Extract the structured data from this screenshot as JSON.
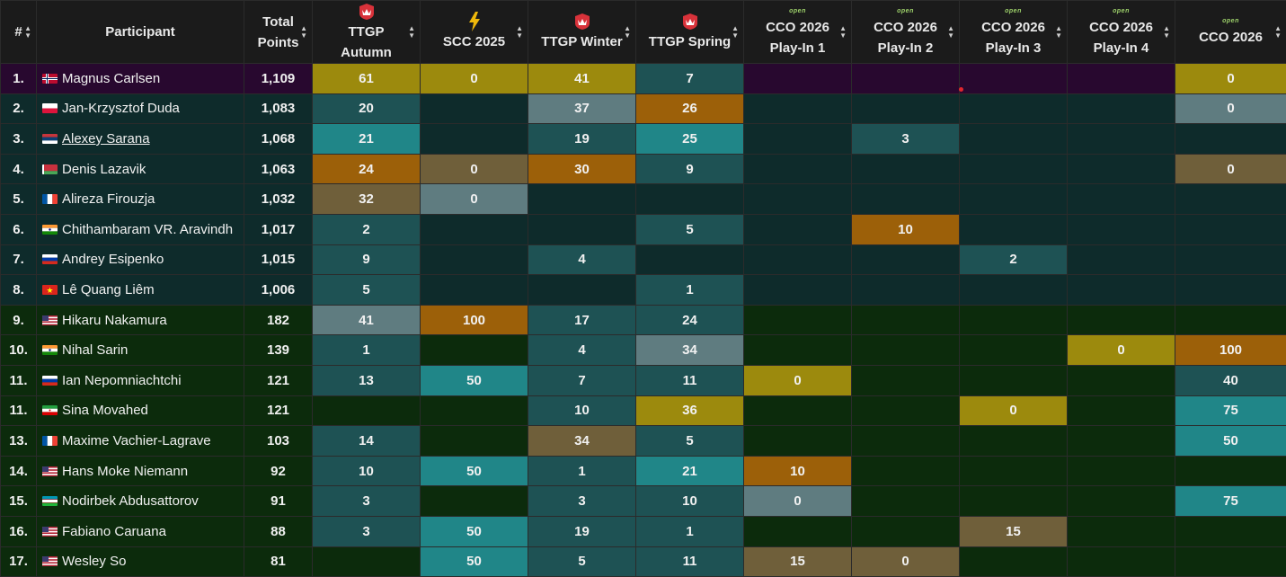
{
  "table": {
    "headers": [
      {
        "label": [
          "#"
        ],
        "icon": ""
      },
      {
        "label": [
          "Participant"
        ],
        "icon": ""
      },
      {
        "label": [
          "Total",
          "Points"
        ],
        "icon": ""
      },
      {
        "label": [
          "TTGP",
          "Autumn"
        ],
        "icon": "ttgp-crown-icon",
        "icon_color": "#d8323a"
      },
      {
        "label": [
          "SCC 2025"
        ],
        "icon": "lightning-icon",
        "icon_color": "#f0b90b"
      },
      {
        "label": [
          "TTGP Winter"
        ],
        "icon": "ttgp-crown-icon",
        "icon_color": "#d8323a"
      },
      {
        "label": [
          "TTGP Spring"
        ],
        "icon": "ttgp-crown-icon",
        "icon_color": "#d8323a"
      },
      {
        "label": [
          "CCO 2026",
          "Play-In 1"
        ],
        "icon": "open-logo-icon",
        "logo_text": "open"
      },
      {
        "label": [
          "CCO 2026",
          "Play-In 2"
        ],
        "icon": "open-logo-icon",
        "logo_text": "open"
      },
      {
        "label": [
          "CCO 2026",
          "Play-In 3"
        ],
        "icon": "open-logo-icon",
        "logo_text": "open"
      },
      {
        "label": [
          "CCO 2026",
          "Play-In 4"
        ],
        "icon": "open-logo-icon",
        "logo_text": "open"
      },
      {
        "label": [
          "CCO 2026"
        ],
        "icon": "open-logo-icon",
        "logo_text": "open"
      }
    ],
    "colors": {
      "purple_row": "#28082f",
      "teal_row": "#0e2b2b",
      "green_row": "#0c2b0c",
      "gold": "#9c8a0d",
      "gray": "#5f7c80",
      "orange": "#9c6009",
      "cyan": "#208688",
      "dark_teal": "#1e5254",
      "brown": "#6f5f3a",
      "dark_gold": "#7d6e2e"
    },
    "rows": [
      {
        "rank": "1.",
        "name": "Magnus Carlsen",
        "flag": "norway-flag-icon",
        "total": "1,109",
        "group": "purple",
        "cells": [
          [
            "61",
            "gold"
          ],
          [
            "0",
            "gold"
          ],
          [
            "41",
            "gold"
          ],
          [
            "7",
            "dteal"
          ],
          [
            "",
            ""
          ],
          [
            "",
            ""
          ],
          [
            "",
            ""
          ],
          [
            "",
            ""
          ],
          [
            "0",
            "gold"
          ]
        ]
      },
      {
        "rank": "2.",
        "name": "Jan-Krzysztof Duda",
        "flag": "poland-flag-icon",
        "total": "1,083",
        "group": "teal",
        "cells": [
          [
            "20",
            "dteal"
          ],
          [
            "",
            ""
          ],
          [
            "37",
            "gray"
          ],
          [
            "26",
            "orange"
          ],
          [
            "",
            ""
          ],
          [
            "",
            ""
          ],
          [
            "",
            ""
          ],
          [
            "",
            ""
          ],
          [
            "0",
            "gray"
          ]
        ]
      },
      {
        "rank": "3.",
        "name": "Alexey Sarana",
        "flag": "serbia-flag-icon",
        "total": "1,068",
        "group": "teal",
        "link": true,
        "cells": [
          [
            "21",
            "cyan"
          ],
          [
            "",
            ""
          ],
          [
            "19",
            "dteal"
          ],
          [
            "25",
            "cyan"
          ],
          [
            "",
            ""
          ],
          [
            "3",
            "dteal"
          ],
          [
            "",
            ""
          ],
          [
            "",
            ""
          ],
          [
            "",
            ""
          ]
        ]
      },
      {
        "rank": "4.",
        "name": "Denis Lazavik",
        "flag": "belarus-flag-icon",
        "total": "1,063",
        "group": "teal",
        "cells": [
          [
            "24",
            "orange"
          ],
          [
            "0",
            "brown"
          ],
          [
            "30",
            "orange"
          ],
          [
            "9",
            "dteal"
          ],
          [
            "",
            ""
          ],
          [
            "",
            ""
          ],
          [
            "",
            ""
          ],
          [
            "",
            ""
          ],
          [
            "0",
            "brown"
          ]
        ]
      },
      {
        "rank": "5.",
        "name": "Alireza Firouzja",
        "flag": "france-flag-icon",
        "total": "1,032",
        "group": "teal",
        "cells": [
          [
            "32",
            "brown"
          ],
          [
            "0",
            "gray"
          ],
          [
            "",
            ""
          ],
          [
            "",
            ""
          ],
          [
            "",
            ""
          ],
          [
            "",
            ""
          ],
          [
            "",
            ""
          ],
          [
            "",
            ""
          ],
          [
            "",
            ""
          ]
        ]
      },
      {
        "rank": "6.",
        "name": "Chithambaram VR. Aravindh",
        "flag": "india-flag-icon",
        "total": "1,017",
        "group": "teal",
        "cells": [
          [
            "2",
            "dteal"
          ],
          [
            "",
            ""
          ],
          [
            "",
            ""
          ],
          [
            "5",
            "dteal"
          ],
          [
            "",
            ""
          ],
          [
            "10",
            "orange"
          ],
          [
            "",
            ""
          ],
          [
            "",
            ""
          ],
          [
            "",
            ""
          ]
        ]
      },
      {
        "rank": "7.",
        "name": "Andrey Esipenko",
        "flag": "russia-flag-icon",
        "total": "1,015",
        "group": "teal",
        "cells": [
          [
            "9",
            "dteal"
          ],
          [
            "",
            ""
          ],
          [
            "4",
            "dteal"
          ],
          [
            "",
            ""
          ],
          [
            "",
            ""
          ],
          [
            "",
            ""
          ],
          [
            "2",
            "dteal"
          ],
          [
            "",
            ""
          ],
          [
            "",
            ""
          ]
        ]
      },
      {
        "rank": "8.",
        "name": "Lê Quang Liêm",
        "flag": "vietnam-flag-icon",
        "total": "1,006",
        "group": "teal",
        "cells": [
          [
            "5",
            "dteal"
          ],
          [
            "",
            ""
          ],
          [
            "",
            ""
          ],
          [
            "1",
            "dteal"
          ],
          [
            "",
            ""
          ],
          [
            "",
            ""
          ],
          [
            "",
            ""
          ],
          [
            "",
            ""
          ],
          [
            "",
            ""
          ]
        ]
      },
      {
        "rank": "9.",
        "name": "Hikaru Nakamura",
        "flag": "usa-flag-icon",
        "total": "182",
        "group": "green",
        "cells": [
          [
            "41",
            "gray"
          ],
          [
            "100",
            "orange"
          ],
          [
            "17",
            "dteal"
          ],
          [
            "24",
            "dteal"
          ],
          [
            "",
            ""
          ],
          [
            "",
            ""
          ],
          [
            "",
            ""
          ],
          [
            "",
            ""
          ],
          [
            "",
            ""
          ]
        ]
      },
      {
        "rank": "10.",
        "name": "Nihal Sarin",
        "flag": "india-flag-icon",
        "total": "139",
        "group": "green",
        "cells": [
          [
            "1",
            "dteal"
          ],
          [
            "",
            ""
          ],
          [
            "4",
            "dteal"
          ],
          [
            "34",
            "gray"
          ],
          [
            "",
            ""
          ],
          [
            "",
            ""
          ],
          [
            "",
            ""
          ],
          [
            "0",
            "gold"
          ],
          [
            "100",
            "orange"
          ]
        ]
      },
      {
        "rank": "11.",
        "name": "Ian Nepomniachtchi",
        "flag": "russia-flag-icon",
        "total": "121",
        "group": "green",
        "cells": [
          [
            "13",
            "dteal"
          ],
          [
            "50",
            "cyan"
          ],
          [
            "7",
            "dteal"
          ],
          [
            "11",
            "dteal"
          ],
          [
            "0",
            "gold"
          ],
          [
            "",
            ""
          ],
          [
            "",
            ""
          ],
          [
            "",
            ""
          ],
          [
            "40",
            "dteal"
          ]
        ]
      },
      {
        "rank": "11.",
        "name": "Sina Movahed",
        "flag": "iran-flag-icon",
        "total": "121",
        "group": "green",
        "cells": [
          [
            "",
            ""
          ],
          [
            "",
            ""
          ],
          [
            "10",
            "dteal"
          ],
          [
            "36",
            "gold"
          ],
          [
            "",
            ""
          ],
          [
            "",
            ""
          ],
          [
            "0",
            "gold"
          ],
          [
            "",
            ""
          ],
          [
            "75",
            "cyan"
          ]
        ]
      },
      {
        "rank": "13.",
        "name": "Maxime Vachier-Lagrave",
        "flag": "france-flag-icon",
        "total": "103",
        "group": "green",
        "cells": [
          [
            "14",
            "dteal"
          ],
          [
            "",
            ""
          ],
          [
            "34",
            "brown"
          ],
          [
            "5",
            "dteal"
          ],
          [
            "",
            ""
          ],
          [
            "",
            ""
          ],
          [
            "",
            ""
          ],
          [
            "",
            ""
          ],
          [
            "50",
            "cyan"
          ]
        ]
      },
      {
        "rank": "14.",
        "name": "Hans Moke Niemann",
        "flag": "usa-flag-icon",
        "total": "92",
        "group": "green",
        "cells": [
          [
            "10",
            "dteal"
          ],
          [
            "50",
            "cyan"
          ],
          [
            "1",
            "dteal"
          ],
          [
            "21",
            "cyan"
          ],
          [
            "10",
            "orange"
          ],
          [
            "",
            ""
          ],
          [
            "",
            ""
          ],
          [
            "",
            ""
          ],
          [
            "",
            ""
          ]
        ]
      },
      {
        "rank": "15.",
        "name": "Nodirbek Abdusattorov",
        "flag": "uzbekistan-flag-icon",
        "total": "91",
        "group": "green",
        "cells": [
          [
            "3",
            "dteal"
          ],
          [
            "",
            ""
          ],
          [
            "3",
            "dteal"
          ],
          [
            "10",
            "dteal"
          ],
          [
            "0",
            "gray"
          ],
          [
            "",
            ""
          ],
          [
            "",
            ""
          ],
          [
            "",
            ""
          ],
          [
            "75",
            "cyan"
          ]
        ]
      },
      {
        "rank": "16.",
        "name": "Fabiano Caruana",
        "flag": "usa-flag-icon",
        "total": "88",
        "group": "green",
        "cells": [
          [
            "3",
            "dteal"
          ],
          [
            "50",
            "cyan"
          ],
          [
            "19",
            "dteal"
          ],
          [
            "1",
            "dteal"
          ],
          [
            "",
            ""
          ],
          [
            "",
            ""
          ],
          [
            "15",
            "brown"
          ],
          [
            "",
            ""
          ],
          [
            "",
            ""
          ]
        ]
      },
      {
        "rank": "17.",
        "name": "Wesley So",
        "flag": "usa-flag-icon",
        "total": "81",
        "group": "green",
        "cells": [
          [
            "",
            ""
          ],
          [
            "50",
            "cyan"
          ],
          [
            "5",
            "dteal"
          ],
          [
            "11",
            "dteal"
          ],
          [
            "15",
            "brown"
          ],
          [
            "0",
            "brown"
          ],
          [
            "",
            ""
          ],
          [
            "",
            ""
          ],
          [
            "",
            ""
          ]
        ]
      }
    ]
  }
}
